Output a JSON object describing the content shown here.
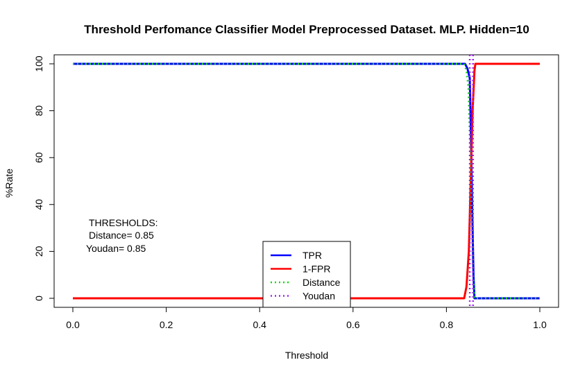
{
  "chart_data": {
    "type": "line",
    "title": "Threshold Perfomance Classifier Model Preprocessed Dataset. MLP. Hidden=10",
    "xlabel": "Threshold",
    "ylabel": "%Rate",
    "xlim": [
      0,
      1
    ],
    "ylim": [
      0,
      100
    ],
    "xticks": [
      0.0,
      0.2,
      0.4,
      0.6,
      0.8,
      1.0
    ],
    "xtick_labels": [
      "0.0",
      "0.2",
      "0.4",
      "0.6",
      "0.8",
      "1.0"
    ],
    "yticks": [
      0,
      20,
      40,
      60,
      80,
      100
    ],
    "ytick_labels": [
      "0",
      "20",
      "40",
      "60",
      "80",
      "100"
    ],
    "grid": false,
    "legend_position": "bottom-center",
    "series": [
      {
        "name": "TPR",
        "color": "#0000ff",
        "style": "solid",
        "x": [
          0,
          0.84,
          0.845,
          0.85,
          0.852,
          0.855,
          0.858,
          0.86,
          1.0
        ],
        "y": [
          100,
          100,
          98,
          94,
          75,
          40,
          10,
          0,
          0
        ]
      },
      {
        "name": "1-FPR",
        "color": "#ff0000",
        "style": "solid",
        "x": [
          0,
          0.838,
          0.843,
          0.848,
          0.852,
          0.856,
          0.86,
          0.862,
          1.0
        ],
        "y": [
          0,
          0,
          5,
          20,
          50,
          80,
          97,
          100,
          100
        ]
      },
      {
        "name": "Distance",
        "color": "#00dd00",
        "style": "dotted",
        "x": [
          0,
          0.838,
          0.843,
          0.847,
          0.85,
          0.853,
          0.856,
          0.86,
          1.0
        ],
        "y": [
          100,
          100,
          97,
          90,
          70,
          45,
          15,
          0,
          0
        ]
      },
      {
        "name": "Youdan",
        "color": "#a020f0",
        "style": "dotted",
        "vlines": [
          0.85,
          0.857
        ]
      }
    ],
    "annotations": [
      "THRESHOLDS:",
      "Distance= 0.85",
      "Youdan= 0.85"
    ]
  }
}
